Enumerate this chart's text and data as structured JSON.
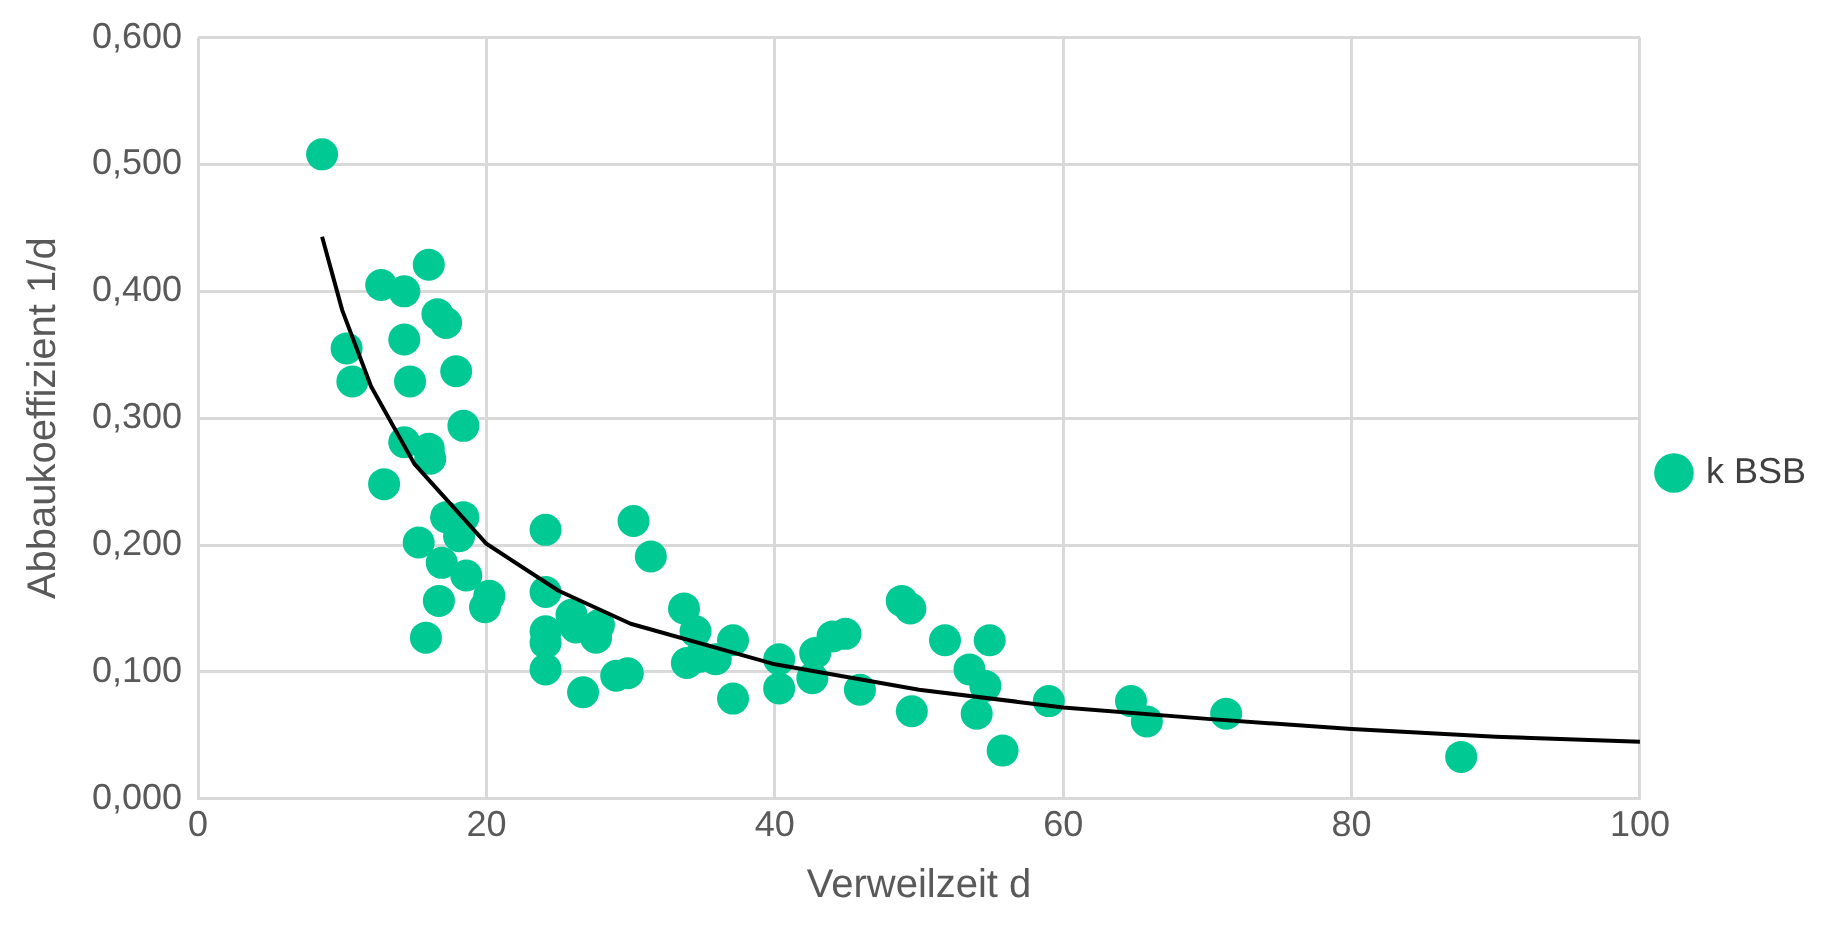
{
  "chart_data": {
    "type": "scatter",
    "xlabel": "Verweilzeit d",
    "ylabel": "Abbaukoeffizient 1/d",
    "xlim": [
      0,
      100
    ],
    "xticks": [
      0,
      20,
      40,
      60,
      80,
      100
    ],
    "ylim": [
      0,
      0.6
    ],
    "yticks": [
      {
        "value": 0,
        "label": "0,000"
      },
      {
        "value": 0.1,
        "label": "0,100"
      },
      {
        "value": 0.2,
        "label": "0,200"
      },
      {
        "value": 0.3,
        "label": "0,300"
      },
      {
        "value": 0.4,
        "label": "0,400"
      },
      {
        "value": 0.5,
        "label": "0,500"
      },
      {
        "value": 0.6,
        "label": "0,600"
      }
    ],
    "grid": true,
    "legend": "right",
    "marker": "circle",
    "series": [
      {
        "name": "k BSB",
        "color": "#00c994",
        "x": [
          8.6,
          10.3,
          10.7,
          12.7,
          12.9,
          14.3,
          14.3,
          14.7,
          14.3,
          16.0,
          15.3,
          15.8,
          16.0,
          16.1,
          16.6,
          17.2,
          16.9,
          16.7,
          17.2,
          17.9,
          18.4,
          18.1,
          18.4,
          18.6,
          19.9,
          20.2,
          24.1,
          24.1,
          24.1,
          24.1,
          24.1,
          25.9,
          26.2,
          26.7,
          27.6,
          27.8,
          29.0,
          29.8,
          30.2,
          31.4,
          33.7,
          33.9,
          34.5,
          34.8,
          35.9,
          37.1,
          37.1,
          40.3,
          40.3,
          42.6,
          42.8,
          44.0,
          44.9,
          45.9,
          48.8,
          49.4,
          49.5,
          51.8,
          53.5,
          54.0,
          54.9,
          54.6,
          55.8,
          59.0,
          64.7,
          65.8,
          71.3,
          87.6
        ],
        "values": [
          0.508,
          0.355,
          0.329,
          0.405,
          0.248,
          0.4,
          0.362,
          0.329,
          0.281,
          0.421,
          0.202,
          0.127,
          0.276,
          0.268,
          0.382,
          0.375,
          0.186,
          0.156,
          0.222,
          0.337,
          0.294,
          0.207,
          0.222,
          0.176,
          0.151,
          0.16,
          0.212,
          0.163,
          0.132,
          0.123,
          0.102,
          0.145,
          0.135,
          0.084,
          0.127,
          0.137,
          0.097,
          0.099,
          0.219,
          0.191,
          0.15,
          0.107,
          0.132,
          0.112,
          0.11,
          0.125,
          0.079,
          0.11,
          0.087,
          0.095,
          0.115,
          0.128,
          0.13,
          0.086,
          0.156,
          0.15,
          0.069,
          0.125,
          0.102,
          0.067,
          0.125,
          0.089,
          0.038,
          0.077,
          0.077,
          0.061,
          0.067,
          0.033
        ]
      },
      {
        "type": "line",
        "color": "#000000",
        "marker": "none",
        "x": [
          8.6,
          10,
          12,
          15,
          20,
          25,
          30,
          40,
          50,
          60,
          70,
          80,
          90,
          100
        ],
        "values": [
          0.443,
          0.385,
          0.325,
          0.264,
          0.201,
          0.164,
          0.138,
          0.106,
          0.086,
          0.072,
          0.063,
          0.055,
          0.049,
          0.045
        ]
      }
    ]
  }
}
